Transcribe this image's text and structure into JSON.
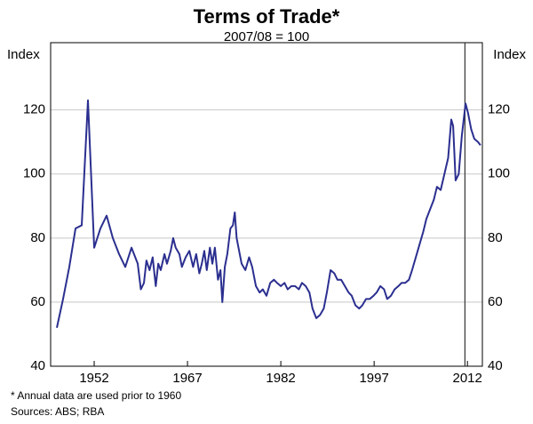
{
  "chart_data": {
    "type": "line",
    "title": "Terms of Trade*",
    "subtitle": "2007/08 = 100",
    "y_label": "Index",
    "y2_label": "Index",
    "notes": [
      "*    Annual data are used prior to 1960",
      "Sources: ABS; RBA"
    ],
    "color": "#2b2f8f",
    "vline": 2011.6,
    "xlim": [
      1945,
      2014.4
    ],
    "xticks": [
      1952,
      1967,
      1982,
      1997,
      2012
    ],
    "ylim": [
      40,
      141
    ],
    "yticks": [
      40,
      60,
      80,
      100,
      120
    ],
    "y2lim": [
      40,
      141
    ],
    "y2ticks": [
      40,
      60,
      80,
      100,
      120
    ],
    "grid": true,
    "x": [
      1946,
      1947,
      1948,
      1949,
      1950,
      1951,
      1952,
      1953,
      1954,
      1955,
      1956,
      1957,
      1958,
      1959,
      1959.5,
      1960.0,
      1960.4,
      1960.9,
      1961.4,
      1961.9,
      1962.3,
      1962.7,
      1963.3,
      1963.7,
      1964.3,
      1964.7,
      1965.1,
      1965.7,
      1966.1,
      1966.7,
      1967.3,
      1967.9,
      1968.4,
      1968.9,
      1969.3,
      1969.7,
      1970.1,
      1970.6,
      1971.0,
      1971.4,
      1971.9,
      1972.3,
      1972.6,
      1973.0,
      1973.4,
      1973.9,
      1974.3,
      1974.6,
      1974.9,
      1975.3,
      1975.7,
      1976.3,
      1976.9,
      1977.4,
      1978.0,
      1978.6,
      1979.1,
      1979.7,
      1980.3,
      1980.9,
      1981.4,
      1982.0,
      1982.6,
      1983.1,
      1983.7,
      1984.3,
      1984.9,
      1985.4,
      1986.0,
      1986.6,
      1987.1,
      1987.7,
      1988.3,
      1988.9,
      1989.4,
      1990.0,
      1990.6,
      1991.1,
      1991.7,
      1992.3,
      1992.9,
      1993.4,
      1994.0,
      1994.6,
      1995.1,
      1995.7,
      1996.3,
      1996.9,
      1997.4,
      1998.0,
      1998.6,
      1999.1,
      1999.7,
      2000.3,
      2000.9,
      2001.4,
      2002.0,
      2002.6,
      2003.1,
      2003.7,
      2004.3,
      2004.9,
      2005.4,
      2006.0,
      2006.6,
      2007.1,
      2007.7,
      2008.3,
      2008.9,
      2009.4,
      2009.7,
      2010.1,
      2010.6,
      2011.1,
      2011.7,
      2012.1,
      2012.6,
      2013.1,
      2013.7,
      2014.1
    ],
    "values": [
      52,
      61,
      71,
      83,
      84,
      123,
      77,
      83,
      87,
      80,
      75,
      71,
      77,
      72,
      64,
      66,
      73,
      70,
      74,
      65,
      72,
      70,
      75,
      72,
      76,
      80,
      77,
      75,
      71,
      74,
      76,
      71,
      75,
      69,
      72,
      76,
      70,
      77,
      72,
      77,
      67,
      70,
      60,
      71,
      75,
      83,
      84,
      88,
      80,
      76,
      72,
      70,
      74,
      71,
      65,
      63,
      64,
      62,
      66,
      67,
      66,
      65,
      66,
      64,
      65,
      65,
      64,
      66,
      65,
      63,
      58,
      55,
      56,
      58,
      63,
      70,
      69,
      67,
      67,
      65,
      63,
      62,
      59,
      58,
      59,
      61,
      61,
      62,
      63,
      65,
      64,
      61,
      62,
      64,
      65,
      66,
      66,
      67,
      70,
      74,
      78,
      82,
      86,
      89,
      92,
      96,
      95,
      100,
      105,
      117,
      115,
      98,
      100,
      112,
      122,
      119,
      114,
      111,
      110,
      109
    ]
  }
}
